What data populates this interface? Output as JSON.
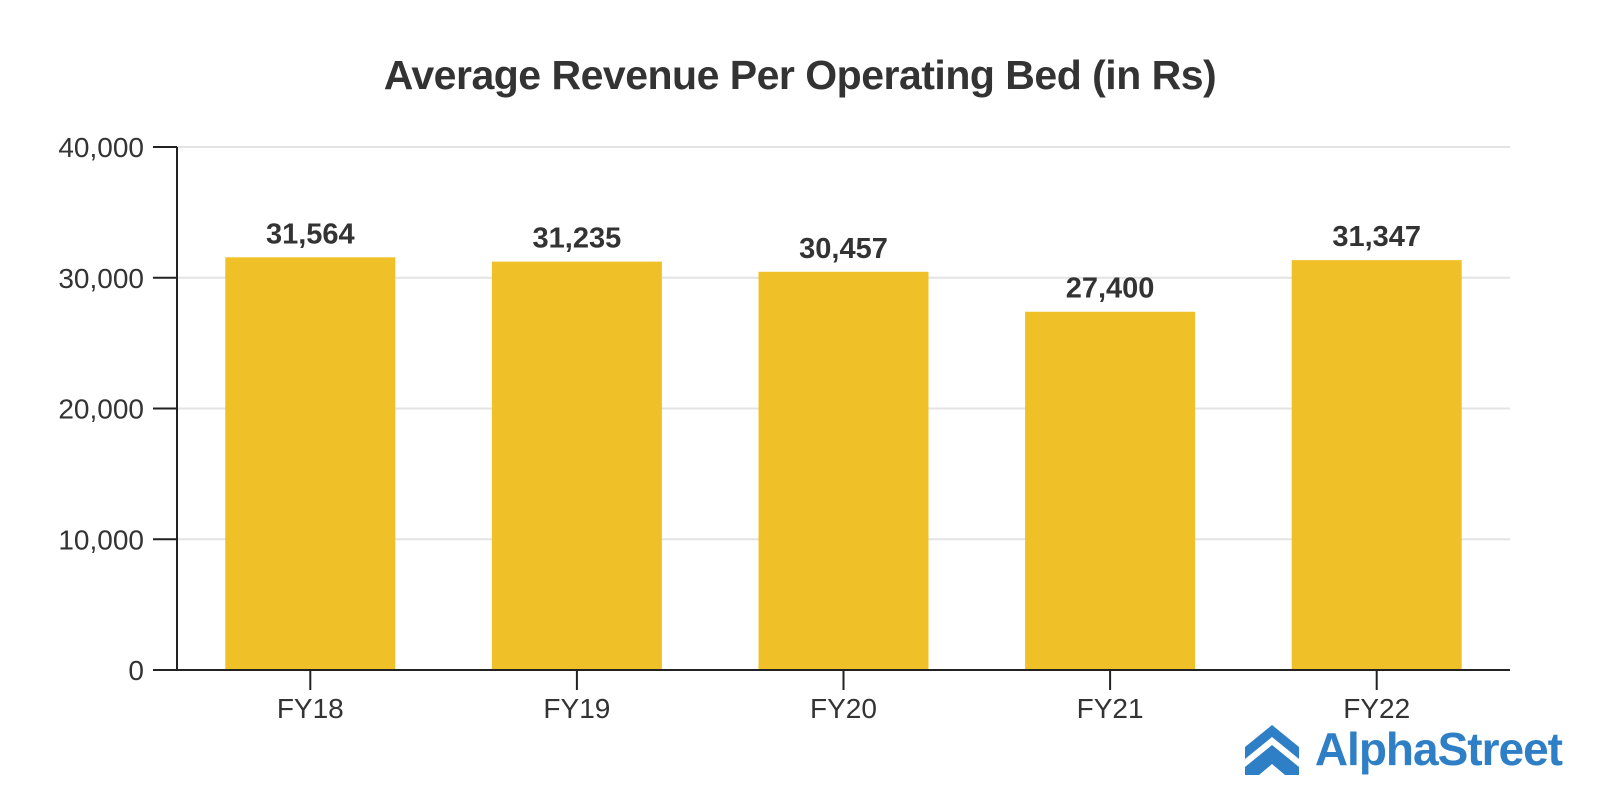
{
  "chart_data": {
    "type": "bar",
    "title": "Average Revenue Per Operating Bed (in Rs)",
    "categories": [
      "FY18",
      "FY19",
      "FY20",
      "FY21",
      "FY22"
    ],
    "values": [
      31564,
      31235,
      30457,
      27400,
      31347
    ],
    "value_labels": [
      "31,564",
      "31,235",
      "30,457",
      "27,400",
      "31,347"
    ],
    "ylim": [
      0,
      40000
    ],
    "yticks": [
      0,
      10000,
      20000,
      30000,
      40000
    ],
    "ytick_labels": [
      "0",
      "10,000",
      "20,000",
      "30,000",
      "40,000"
    ],
    "xlabel": "",
    "ylabel": "",
    "grid": true,
    "bar_color": "#f0c028"
  },
  "brand": {
    "name": "AlphaStreet",
    "logo_icon": "alphastreet-logo-icon",
    "color": "#2e7fc5"
  }
}
